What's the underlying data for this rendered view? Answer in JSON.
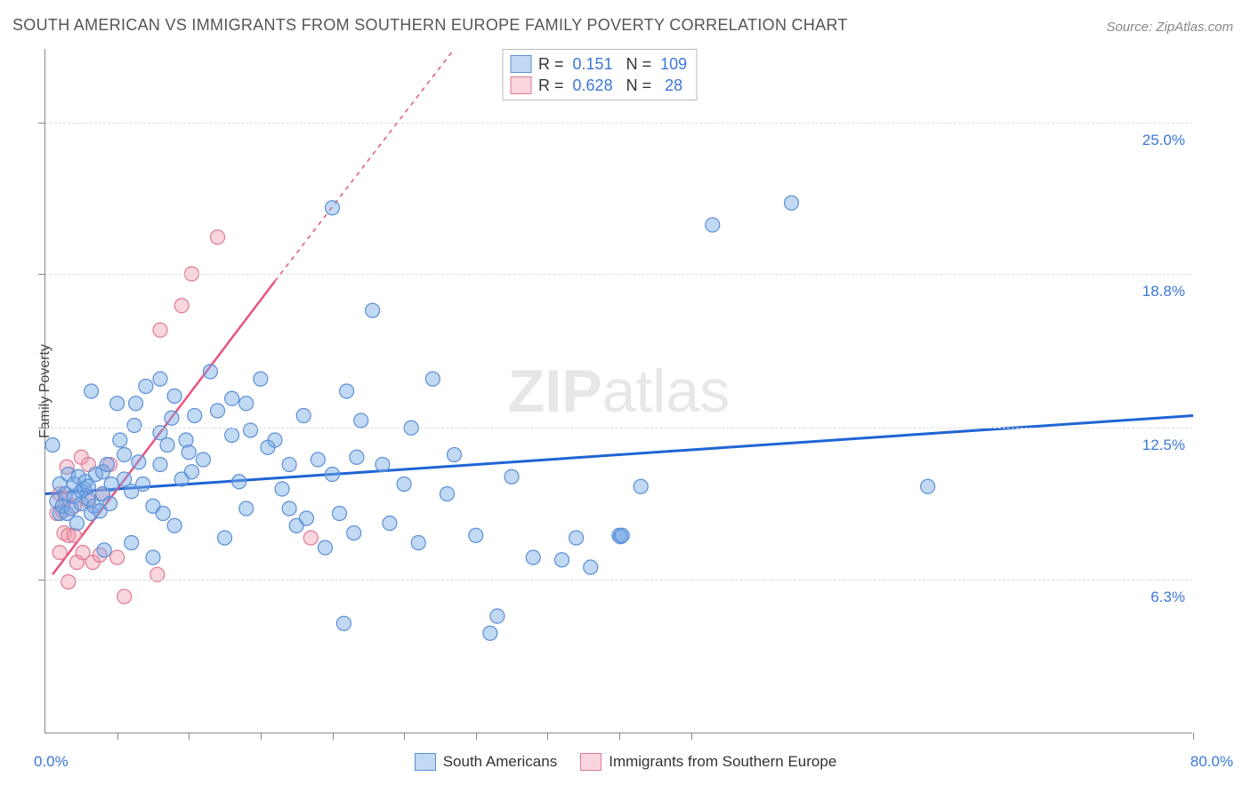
{
  "title": "SOUTH AMERICAN VS IMMIGRANTS FROM SOUTHERN EUROPE FAMILY POVERTY CORRELATION CHART",
  "source": "Source: ZipAtlas.com",
  "ylabel": "Family Poverty",
  "watermark_bold": "ZIP",
  "watermark_rest": "atlas",
  "colors": {
    "title": "#555555",
    "source": "#888888",
    "axis_label": "#3b78d8",
    "grid": "#dcdcdc",
    "blue_fill": "rgba(120,170,230,0.45)",
    "blue_stroke": "#5b8fd6",
    "blue_line": "#1f64d4",
    "pink_fill": "rgba(240,150,170,0.40)",
    "pink_stroke": "#e07a95",
    "pink_line": "#e75480"
  },
  "chart": {
    "type": "scatter",
    "xlim": [
      0,
      80
    ],
    "ylim": [
      0,
      28
    ],
    "y_gridlines": [
      6.3,
      12.5,
      18.8,
      25.0
    ],
    "y_tick_labels": [
      "6.3%",
      "12.5%",
      "18.8%",
      "25.0%"
    ],
    "x_minor_ticks": [
      5,
      10,
      15,
      20,
      25,
      30,
      35,
      40,
      45,
      80
    ],
    "x_range_labels": {
      "min": "0.0%",
      "max": "80.0%"
    },
    "marker_radius": 8,
    "series": {
      "blue": {
        "label": "South Americans",
        "R": "0.151",
        "N": "109",
        "regression": {
          "x1": 0,
          "y1": 9.8,
          "x2": 80,
          "y2": 13.0
        },
        "points": [
          [
            0.5,
            11.8
          ],
          [
            0.8,
            9.5
          ],
          [
            1.0,
            10.2
          ],
          [
            1.0,
            9.0
          ],
          [
            1.2,
            9.3
          ],
          [
            1.4,
            9.8
          ],
          [
            1.5,
            9.0
          ],
          [
            1.6,
            10.6
          ],
          [
            1.8,
            9.2
          ],
          [
            2.0,
            9.7
          ],
          [
            2.0,
            10.2
          ],
          [
            2.2,
            8.6
          ],
          [
            2.3,
            10.5
          ],
          [
            2.5,
            9.4
          ],
          [
            2.5,
            9.9
          ],
          [
            2.7,
            10.0
          ],
          [
            2.8,
            10.3
          ],
          [
            3.0,
            9.6
          ],
          [
            3.0,
            10.1
          ],
          [
            3.2,
            9.0
          ],
          [
            3.2,
            14.0
          ],
          [
            3.4,
            9.3
          ],
          [
            3.5,
            10.6
          ],
          [
            3.8,
            9.1
          ],
          [
            4.0,
            9.8
          ],
          [
            4.0,
            10.7
          ],
          [
            4.1,
            7.5
          ],
          [
            4.3,
            11.0
          ],
          [
            4.5,
            9.4
          ],
          [
            4.6,
            10.2
          ],
          [
            5.0,
            13.5
          ],
          [
            5.2,
            12.0
          ],
          [
            5.5,
            11.4
          ],
          [
            5.5,
            10.4
          ],
          [
            6.0,
            9.9
          ],
          [
            6.0,
            7.8
          ],
          [
            6.2,
            12.6
          ],
          [
            6.3,
            13.5
          ],
          [
            6.5,
            11.1
          ],
          [
            6.8,
            10.2
          ],
          [
            7.0,
            14.2
          ],
          [
            7.5,
            9.3
          ],
          [
            7.5,
            7.2
          ],
          [
            8.0,
            14.5
          ],
          [
            8.0,
            11.0
          ],
          [
            8.0,
            12.3
          ],
          [
            8.2,
            9.0
          ],
          [
            8.5,
            11.8
          ],
          [
            8.8,
            12.9
          ],
          [
            9.0,
            13.8
          ],
          [
            9.0,
            8.5
          ],
          [
            9.5,
            10.4
          ],
          [
            9.8,
            12.0
          ],
          [
            10.0,
            11.5
          ],
          [
            10.2,
            10.7
          ],
          [
            10.4,
            13.0
          ],
          [
            11.0,
            11.2
          ],
          [
            11.5,
            14.8
          ],
          [
            12.0,
            13.2
          ],
          [
            12.5,
            8.0
          ],
          [
            13.0,
            12.2
          ],
          [
            13.0,
            13.7
          ],
          [
            13.5,
            10.3
          ],
          [
            14.0,
            9.2
          ],
          [
            14.0,
            13.5
          ],
          [
            14.3,
            12.4
          ],
          [
            15.0,
            14.5
          ],
          [
            15.5,
            11.7
          ],
          [
            16.0,
            12.0
          ],
          [
            16.5,
            10.0
          ],
          [
            17.0,
            11.0
          ],
          [
            17.0,
            9.2
          ],
          [
            17.5,
            8.5
          ],
          [
            18.0,
            13.0
          ],
          [
            18.2,
            8.8
          ],
          [
            19.0,
            11.2
          ],
          [
            19.5,
            7.6
          ],
          [
            20.0,
            10.6
          ],
          [
            20.5,
            9.0
          ],
          [
            21.0,
            14.0
          ],
          [
            21.5,
            8.2
          ],
          [
            21.7,
            11.3
          ],
          [
            22.0,
            12.8
          ],
          [
            22.8,
            17.3
          ],
          [
            23.5,
            11.0
          ],
          [
            24.0,
            8.6
          ],
          [
            25.0,
            10.2
          ],
          [
            25.5,
            12.5
          ],
          [
            26.0,
            7.8
          ],
          [
            27.0,
            14.5
          ],
          [
            28.0,
            9.8
          ],
          [
            28.5,
            11.4
          ],
          [
            30.0,
            8.1
          ],
          [
            31.0,
            4.1
          ],
          [
            31.5,
            4.8
          ],
          [
            32.5,
            10.5
          ],
          [
            34.0,
            7.2
          ],
          [
            36.0,
            7.1
          ],
          [
            37.0,
            8.0
          ],
          [
            38.0,
            6.8
          ],
          [
            40.0,
            8.1
          ],
          [
            40.1,
            8.05
          ],
          [
            40.2,
            8.1
          ],
          [
            41.5,
            10.1
          ],
          [
            46.5,
            20.8
          ],
          [
            52.0,
            21.7
          ],
          [
            61.5,
            10.1
          ],
          [
            20.8,
            4.5
          ],
          [
            20.0,
            21.5
          ]
        ]
      },
      "pink": {
        "label": "Immigrants from Southern Europe",
        "R": "0.628",
        "N": "28",
        "regression_solid": {
          "x1": 0.5,
          "y1": 6.5,
          "x2": 16.0,
          "y2": 18.5
        },
        "regression_dashed": {
          "x1": 16.0,
          "y1": 18.5,
          "x2": 28.5,
          "y2": 28.0
        },
        "points": [
          [
            0.8,
            9.0
          ],
          [
            1.0,
            9.8
          ],
          [
            1.0,
            7.4
          ],
          [
            1.2,
            9.1
          ],
          [
            1.3,
            8.2
          ],
          [
            1.4,
            9.6
          ],
          [
            1.5,
            10.9
          ],
          [
            1.6,
            8.1
          ],
          [
            1.6,
            6.2
          ],
          [
            2.0,
            9.3
          ],
          [
            2.0,
            8.1
          ],
          [
            2.2,
            7.0
          ],
          [
            2.5,
            11.3
          ],
          [
            2.6,
            7.4
          ],
          [
            3.0,
            9.5
          ],
          [
            3.0,
            11.0
          ],
          [
            3.3,
            7.0
          ],
          [
            3.8,
            7.3
          ],
          [
            4.0,
            9.8
          ],
          [
            4.5,
            11.0
          ],
          [
            5.0,
            7.2
          ],
          [
            5.5,
            5.6
          ],
          [
            7.8,
            6.5
          ],
          [
            8.0,
            16.5
          ],
          [
            9.5,
            17.5
          ],
          [
            10.2,
            18.8
          ],
          [
            12.0,
            20.3
          ],
          [
            18.5,
            8.0
          ]
        ]
      }
    }
  },
  "legend_top": {
    "rows": [
      {
        "color": "blue",
        "R_label": "R =",
        "R": "0.151",
        "N_label": "N =",
        "N": "109"
      },
      {
        "color": "pink",
        "R_label": "R =",
        "R": "0.628",
        "N_label": "N =",
        "N": "28"
      }
    ]
  },
  "bottom_legend": [
    {
      "color": "blue",
      "label": "South Americans"
    },
    {
      "color": "pink",
      "label": "Immigrants from Southern Europe"
    }
  ]
}
